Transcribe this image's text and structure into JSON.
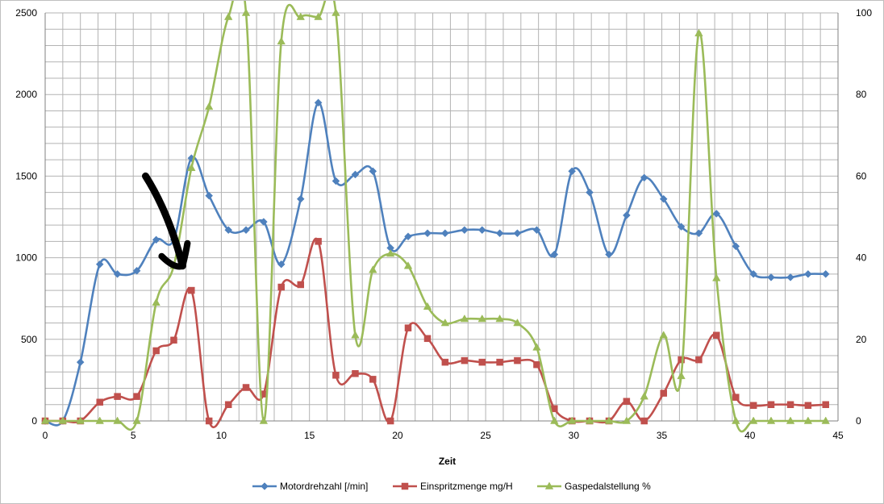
{
  "chart_data": {
    "type": "line",
    "xlabel": "Zeit",
    "xlim": [
      0,
      45
    ],
    "x_ticks": [
      "0",
      "5",
      "10",
      "15",
      "20",
      "25",
      "30",
      "35",
      "40",
      "45"
    ],
    "ylim_left": [
      0,
      2500
    ],
    "y_ticks_left": [
      "0",
      "500",
      "1000",
      "1500",
      "2000",
      "2500"
    ],
    "ylim_right": [
      0,
      100
    ],
    "y_ticks_right": [
      "0",
      "20",
      "40",
      "60",
      "80",
      "100"
    ],
    "grid": true,
    "legend_position": "bottom",
    "series": [
      {
        "name": "Motordrehzahl [/min]",
        "axis": "left",
        "color": "#4f81bd",
        "marker": "diamond",
        "x": [
          0,
          1,
          2,
          3.1,
          4.1,
          5.2,
          6.3,
          7.3,
          8.3,
          9.3,
          10.4,
          11.4,
          12.4,
          13.4,
          14.5,
          15.5,
          16.5,
          17.6,
          18.6,
          19.6,
          20.6,
          21.7,
          22.7,
          23.8,
          24.8,
          25.8,
          26.8,
          27.9,
          28.9,
          29.9,
          30.9,
          32,
          33,
          34,
          35.1,
          36.1,
          37.1,
          38.1,
          39.2,
          40.2,
          41.2,
          42.3,
          43.3,
          44.3
        ],
        "values": [
          0,
          0,
          360,
          960,
          900,
          920,
          1110,
          1110,
          1610,
          1380,
          1170,
          1170,
          1220,
          960,
          1360,
          1950,
          1470,
          1510,
          1530,
          1060,
          1130,
          1150,
          1150,
          1170,
          1170,
          1150,
          1150,
          1170,
          1020,
          1530,
          1400,
          1020,
          1260,
          1490,
          1360,
          1190,
          1150,
          1270,
          1070,
          900,
          880,
          880,
          900,
          900
        ]
      },
      {
        "name": "Einspritzmenge mg/H",
        "axis": "left",
        "color": "#c0504d",
        "marker": "square",
        "x": [
          0,
          1,
          2,
          3.1,
          4.1,
          5.2,
          6.3,
          7.3,
          8.3,
          9.3,
          10.4,
          11.4,
          12.4,
          13.4,
          14.5,
          15.5,
          16.5,
          17.6,
          18.6,
          19.6,
          20.6,
          21.7,
          22.7,
          23.8,
          24.8,
          25.8,
          26.8,
          27.9,
          28.9,
          29.9,
          30.9,
          32,
          33,
          34,
          35.1,
          36.1,
          37.1,
          38.1,
          39.2,
          40.2,
          41.2,
          42.3,
          43.3,
          44.3
        ],
        "values": [
          0,
          0,
          0,
          115,
          150,
          150,
          430,
          495,
          800,
          0,
          100,
          205,
          165,
          820,
          835,
          1100,
          280,
          290,
          255,
          0,
          570,
          505,
          360,
          370,
          360,
          360,
          370,
          345,
          75,
          0,
          0,
          0,
          120,
          0,
          170,
          375,
          375,
          525,
          145,
          95,
          100,
          100,
          95,
          100
        ]
      },
      {
        "name": "Gaspedalstellung %",
        "axis": "right",
        "color": "#9bbb59",
        "marker": "triangle",
        "x": [
          0,
          1,
          2,
          3.1,
          4.1,
          5.2,
          6.3,
          7.3,
          8.3,
          9.3,
          10.4,
          11.4,
          12.4,
          13.4,
          14.5,
          15.5,
          16.5,
          17.6,
          18.6,
          19.6,
          20.6,
          21.7,
          22.7,
          23.8,
          24.8,
          25.8,
          26.8,
          27.9,
          28.9,
          29.9,
          30.9,
          32,
          33,
          34,
          35.1,
          36.1,
          37.1,
          38.1,
          39.2,
          40.2,
          41.2,
          42.3,
          43.3,
          44.3
        ],
        "values": [
          0,
          0,
          0,
          0,
          0,
          0,
          29,
          38,
          62,
          77,
          99,
          100,
          0,
          93,
          99,
          99,
          100,
          21,
          37,
          41,
          38,
          28,
          24,
          25,
          25,
          25,
          24,
          18,
          0,
          0,
          0,
          0,
          0,
          6,
          21,
          11,
          95,
          35,
          0,
          0,
          0,
          0,
          0,
          0
        ]
      }
    ],
    "annotations": [
      {
        "type": "hand-drawn-arrow",
        "color": "#000000",
        "from": [
          5.7,
          1500
        ],
        "to": [
          7.8,
          950
        ]
      }
    ]
  }
}
